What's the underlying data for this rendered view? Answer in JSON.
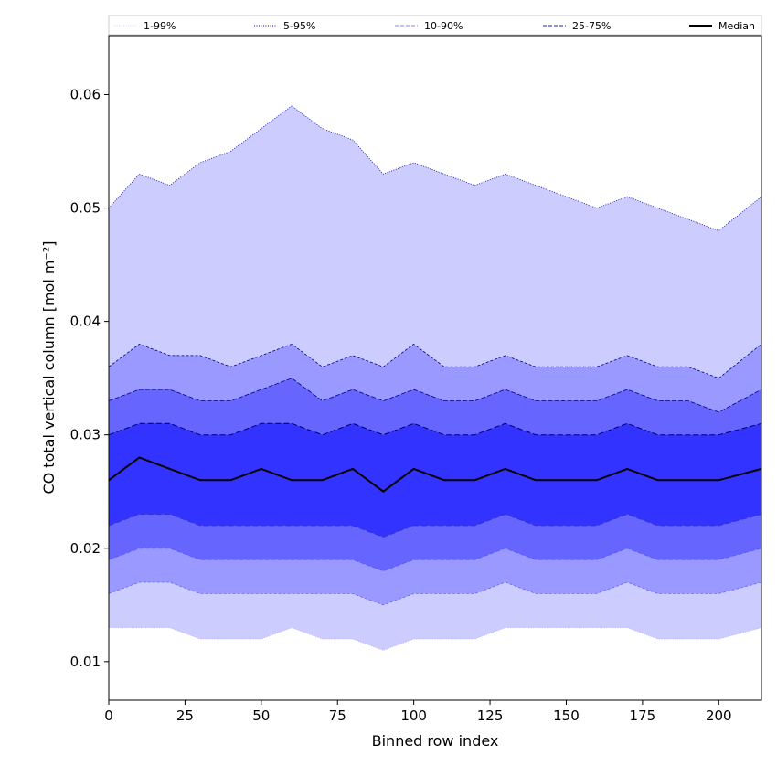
{
  "chart_data": {
    "type": "area",
    "title": "",
    "xlabel": "Binned row index",
    "ylabel": "CO total vertical column [mol m⁻²]",
    "xlim": [
      0,
      214
    ],
    "ylim": [
      0.0066,
      0.0652
    ],
    "xticks": [
      0,
      25,
      50,
      75,
      100,
      125,
      150,
      175,
      200
    ],
    "yticks": [
      0.01,
      0.02,
      0.03,
      0.04,
      0.05,
      0.06
    ],
    "ytick_labels": [
      "0.01",
      "0.02",
      "0.03",
      "0.04",
      "0.05",
      "0.06"
    ],
    "legend_position": "top (horizontal, above plot)",
    "legend": [
      {
        "label": "1-99%",
        "style": "dotted",
        "color": "#ccccff"
      },
      {
        "label": "5-95%",
        "style": "dotted",
        "color": "#0000aa"
      },
      {
        "label": "10-90%",
        "style": "dashed",
        "color": "#8080ff"
      },
      {
        "label": "25-75%",
        "style": "dashed",
        "color": "#2222cc"
      },
      {
        "label": "Median",
        "style": "solid",
        "color": "#000000"
      }
    ],
    "band_colors": {
      "p1_99": "#ccccff",
      "p5_95": "#9999ff",
      "p10_90": "#6666ff",
      "p25_75": "#3333ff"
    },
    "x": [
      0,
      10,
      20,
      30,
      40,
      50,
      60,
      70,
      80,
      90,
      100,
      110,
      120,
      130,
      140,
      150,
      160,
      170,
      180,
      190,
      200,
      214
    ],
    "series": [
      {
        "name": "p99",
        "values": [
          0.05,
          0.053,
          0.052,
          0.054,
          0.055,
          0.057,
          0.059,
          0.057,
          0.056,
          0.053,
          0.054,
          0.053,
          0.052,
          0.053,
          0.052,
          0.051,
          0.05,
          0.051,
          0.05,
          0.049,
          0.048,
          0.051
        ]
      },
      {
        "name": "p95",
        "values": [
          0.036,
          0.038,
          0.037,
          0.037,
          0.036,
          0.037,
          0.038,
          0.036,
          0.037,
          0.036,
          0.038,
          0.036,
          0.036,
          0.037,
          0.036,
          0.036,
          0.036,
          0.037,
          0.036,
          0.036,
          0.035,
          0.038
        ]
      },
      {
        "name": "p90",
        "values": [
          0.033,
          0.034,
          0.034,
          0.033,
          0.033,
          0.034,
          0.035,
          0.033,
          0.034,
          0.033,
          0.034,
          0.033,
          0.033,
          0.034,
          0.033,
          0.033,
          0.033,
          0.034,
          0.033,
          0.033,
          0.032,
          0.034
        ]
      },
      {
        "name": "p75",
        "values": [
          0.03,
          0.031,
          0.031,
          0.03,
          0.03,
          0.031,
          0.031,
          0.03,
          0.031,
          0.03,
          0.031,
          0.03,
          0.03,
          0.031,
          0.03,
          0.03,
          0.03,
          0.031,
          0.03,
          0.03,
          0.03,
          0.031
        ]
      },
      {
        "name": "Median",
        "values": [
          0.026,
          0.028,
          0.027,
          0.026,
          0.026,
          0.027,
          0.026,
          0.026,
          0.027,
          0.025,
          0.027,
          0.026,
          0.026,
          0.027,
          0.026,
          0.026,
          0.026,
          0.027,
          0.026,
          0.026,
          0.026,
          0.027
        ]
      },
      {
        "name": "p25",
        "values": [
          0.022,
          0.023,
          0.023,
          0.022,
          0.022,
          0.022,
          0.022,
          0.022,
          0.022,
          0.021,
          0.022,
          0.022,
          0.022,
          0.023,
          0.022,
          0.022,
          0.022,
          0.023,
          0.022,
          0.022,
          0.022,
          0.023
        ]
      },
      {
        "name": "p10",
        "values": [
          0.019,
          0.02,
          0.02,
          0.019,
          0.019,
          0.019,
          0.019,
          0.019,
          0.019,
          0.018,
          0.019,
          0.019,
          0.019,
          0.02,
          0.019,
          0.019,
          0.019,
          0.02,
          0.019,
          0.019,
          0.019,
          0.02
        ]
      },
      {
        "name": "p5",
        "values": [
          0.016,
          0.017,
          0.017,
          0.016,
          0.016,
          0.016,
          0.016,
          0.016,
          0.016,
          0.015,
          0.016,
          0.016,
          0.016,
          0.017,
          0.016,
          0.016,
          0.016,
          0.017,
          0.016,
          0.016,
          0.016,
          0.017
        ]
      },
      {
        "name": "p1",
        "values": [
          0.013,
          0.013,
          0.013,
          0.012,
          0.012,
          0.012,
          0.013,
          0.012,
          0.012,
          0.011,
          0.012,
          0.012,
          0.012,
          0.013,
          0.013,
          0.013,
          0.013,
          0.013,
          0.012,
          0.012,
          0.012,
          0.013
        ]
      }
    ]
  }
}
